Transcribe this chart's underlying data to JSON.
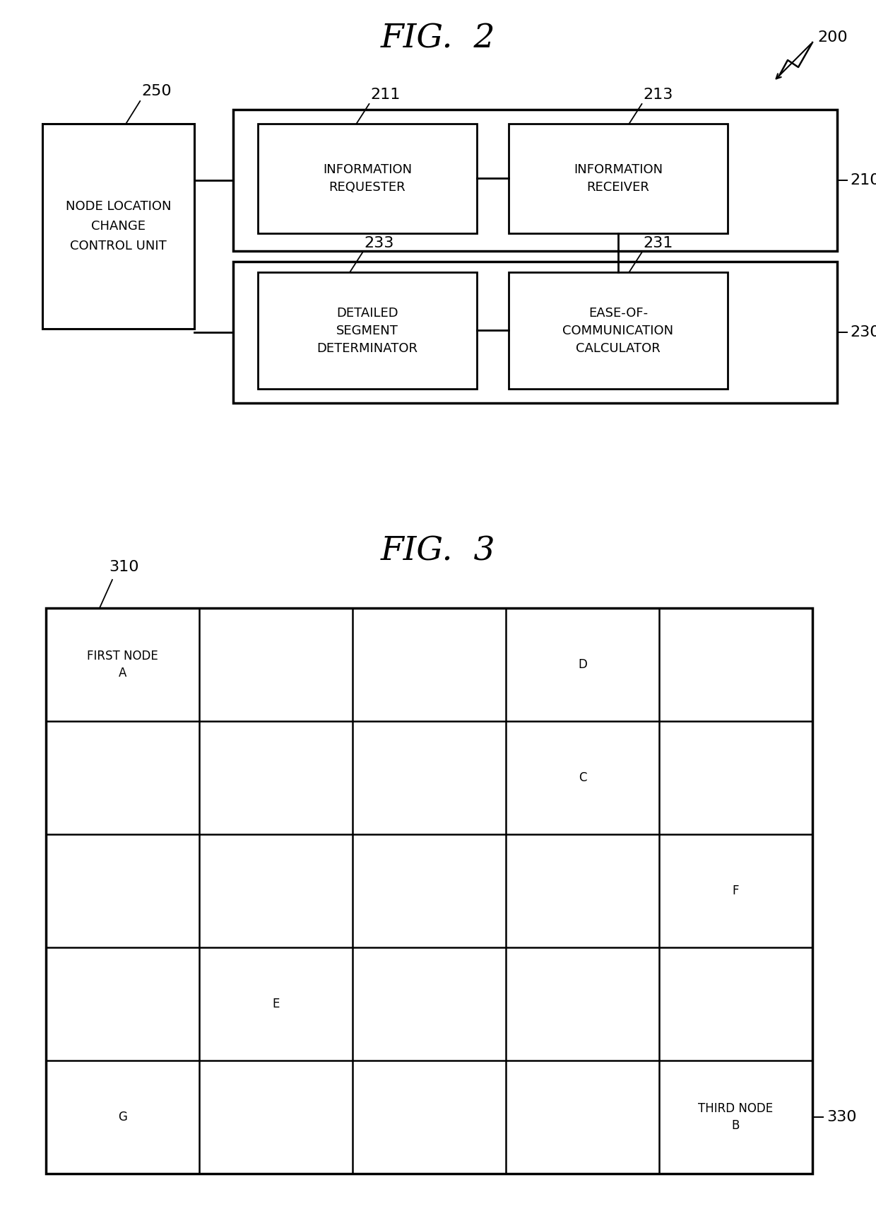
{
  "fig2_title": "FIG.  2",
  "fig3_title": "FIG.  3",
  "bg_color": "#ffffff",
  "fig2": {
    "label_200": "200",
    "label_250": "250",
    "label_210": "210",
    "label_230": "230",
    "label_211": "211",
    "label_213": "213",
    "label_231": "231",
    "label_233": "233",
    "box_250_text": "NODE LOCATION\nCHANGE\nCONTROL UNIT",
    "box_211_text": "INFORMATION\nREQUESTER",
    "box_213_text": "INFORMATION\nRECEIVER",
    "box_231_text": "EASE-OF-\nCOMMUNICATION\nCALCULATOR",
    "box_233_text": "DETAILED\nSEGMENT\nDETERMINATOR"
  },
  "fig3": {
    "label_310": "310",
    "label_330": "330",
    "grid_rows": 5,
    "grid_cols": 5,
    "cell_labels": [
      {
        "row": 0,
        "col": 0,
        "text": "FIRST NODE\nA"
      },
      {
        "row": 0,
        "col": 3,
        "text": "D"
      },
      {
        "row": 1,
        "col": 3,
        "text": "C"
      },
      {
        "row": 2,
        "col": 4,
        "text": "F"
      },
      {
        "row": 3,
        "col": 1,
        "text": "E"
      },
      {
        "row": 4,
        "col": 0,
        "text": "G"
      },
      {
        "row": 4,
        "col": 4,
        "text": "THIRD NODE\nB"
      }
    ]
  }
}
